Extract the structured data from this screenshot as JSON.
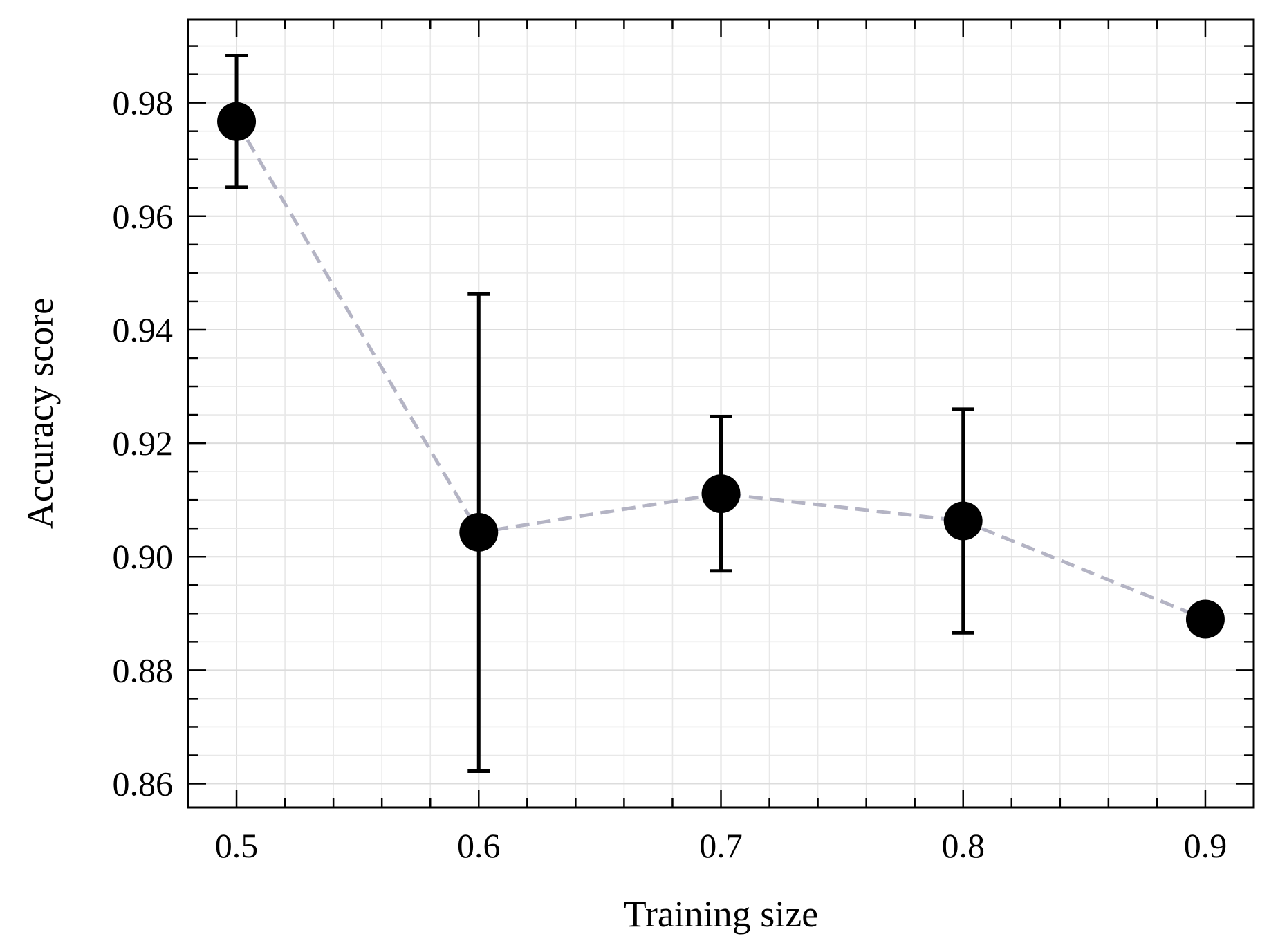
{
  "chart_data": {
    "type": "scatter",
    "xlabel": "Training size",
    "ylabel": "Accuracy score",
    "xlim": [
      0.48,
      0.92
    ],
    "ylim": [
      0.8558,
      0.9947
    ],
    "x_ticks": [
      0.5,
      0.6,
      0.7,
      0.8,
      0.9
    ],
    "x_tick_labels": [
      "0.5",
      "0.6",
      "0.7",
      "0.8",
      "0.9"
    ],
    "y_ticks": [
      0.86,
      0.88,
      0.9,
      0.92,
      0.94,
      0.96,
      0.98
    ],
    "y_tick_labels": [
      "0.86",
      "0.88",
      "0.90",
      "0.92",
      "0.94",
      "0.96",
      "0.98"
    ],
    "grid": true,
    "series": [
      {
        "x": [
          0.5,
          0.6,
          0.7,
          0.8,
          0.9
        ],
        "y": [
          0.9767,
          0.9043,
          0.9111,
          0.9063,
          0.889
        ],
        "y_err_low": [
          0.9651,
          0.8622,
          0.8975,
          0.8866,
          0.889
        ],
        "y_err_high": [
          0.9883,
          0.9463,
          0.9247,
          0.926,
          0.889
        ],
        "marker_color": "#000000",
        "line_color": "#b4b4c4",
        "line_style": "dashed"
      }
    ]
  }
}
